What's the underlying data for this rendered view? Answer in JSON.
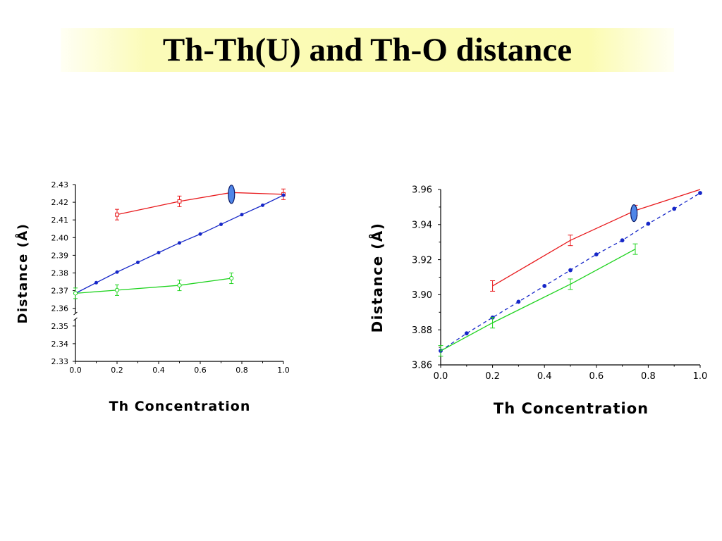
{
  "title": "Th-Th(U) and Th-O distance",
  "chart_data": [
    {
      "type": "line",
      "xlabel": "Th Concentration",
      "ylabel": "Distance (Å)",
      "xlim": [
        0,
        1
      ],
      "ylim": [
        2.33,
        2.43
      ],
      "x_ticks": [
        "0.0",
        "0.2",
        "0.4",
        "0.6",
        "0.8",
        "1.0"
      ],
      "y_ticks": [
        "2.33",
        "2.34",
        "2.35",
        "2.36",
        "2.37",
        "2.38",
        "2.39",
        "2.40",
        "2.41",
        "2.42",
        "2.43"
      ],
      "axis_break": true,
      "grid": false,
      "marker_note": "blue ellipse near x = 0.75",
      "series": [
        {
          "color": "#e8191c",
          "line_style": "solid",
          "marker": "open-square",
          "x": [
            0.2,
            0.5,
            0.75,
            1.0
          ],
          "y": [
            2.413,
            2.4205,
            2.4255,
            2.4245
          ],
          "err": [
            0.003,
            0.003,
            0.003,
            0.003
          ]
        },
        {
          "color": "#1627c8",
          "line_style": "solid",
          "marker": "dot",
          "x": [
            0.0,
            0.1,
            0.2,
            0.3,
            0.4,
            0.5,
            0.6,
            0.7,
            0.8,
            0.9,
            1.0
          ],
          "y": [
            2.3685,
            2.3745,
            2.3805,
            2.386,
            2.3915,
            2.397,
            2.402,
            2.4075,
            2.413,
            2.4183,
            2.424
          ],
          "err": []
        },
        {
          "color": "#1fd31f",
          "line_style": "solid",
          "marker": "open-circle",
          "x": [
            0.0,
            0.2,
            0.5,
            0.75
          ],
          "y": [
            2.3685,
            2.3703,
            2.373,
            2.377
          ],
          "err": [
            0.003,
            0.003,
            0.003,
            0.003
          ]
        }
      ]
    },
    {
      "type": "line",
      "xlabel": "Th Concentration",
      "ylabel": "Distance (Å)",
      "xlim": [
        0,
        1
      ],
      "ylim": [
        3.86,
        3.96
      ],
      "x_ticks": [
        "0.0",
        "0.2",
        "0.4",
        "0.6",
        "0.8",
        "1.0"
      ],
      "y_ticks": [
        "3.86",
        "3.88",
        "3.90",
        "3.92",
        "3.94",
        "3.96"
      ],
      "grid": false,
      "marker_note": "blue ellipse near x = 0.75",
      "series": [
        {
          "color": "#e8191c",
          "line_style": "solid",
          "marker": "none",
          "x": [
            0.2,
            0.5,
            0.75,
            1.0
          ],
          "y": [
            3.905,
            3.931,
            3.948,
            3.96
          ],
          "err": [
            0.003,
            0.003,
            0.003,
            0
          ]
        },
        {
          "color": "#1627c8",
          "line_style": "dashed",
          "marker": "dot",
          "x": [
            0.0,
            0.1,
            0.2,
            0.3,
            0.4,
            0.5,
            0.6,
            0.7,
            0.8,
            0.9,
            1.0
          ],
          "y": [
            3.868,
            3.878,
            3.887,
            3.896,
            3.905,
            3.914,
            3.923,
            3.931,
            3.9405,
            3.949,
            3.958
          ],
          "err": []
        },
        {
          "color": "#1fd31f",
          "line_style": "solid",
          "marker": "none",
          "x": [
            0.0,
            0.2,
            0.5,
            0.75
          ],
          "y": [
            3.868,
            3.884,
            3.906,
            3.926
          ],
          "err": [
            0.003,
            0.003,
            0.003,
            0.003
          ]
        }
      ]
    }
  ]
}
